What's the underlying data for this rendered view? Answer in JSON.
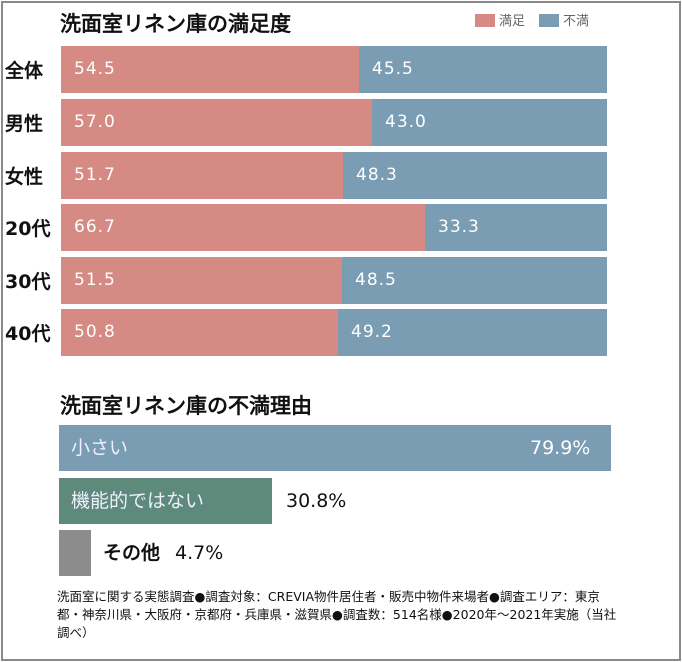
{
  "chart_data": [
    {
      "type": "bar",
      "stacked": true,
      "orientation": "horizontal",
      "title": "洗面室リネン庫の満足度",
      "categories": [
        "全体",
        "男性",
        "女性",
        "20代",
        "30代",
        "40代"
      ],
      "series": [
        {
          "name": "満足",
          "color": "#d58a83",
          "values": [
            54.5,
            57.0,
            51.7,
            66.7,
            51.5,
            50.8
          ]
        },
        {
          "name": "不満",
          "color": "#7a9db3",
          "values": [
            45.5,
            43.0,
            48.3,
            33.3,
            48.5,
            49.2
          ]
        }
      ],
      "legend": "top-right"
    },
    {
      "type": "bar",
      "orientation": "horizontal",
      "title": "洗面室リネン庫の不満理由",
      "categories": [
        "小さい",
        "機能的ではない",
        "その他"
      ],
      "values": [
        79.9,
        30.8,
        4.7
      ],
      "labels": [
        "79.9%",
        "30.8%",
        "4.7%"
      ],
      "colors": [
        "#7a9db3",
        "#5e8a7c",
        "#8c8c8c"
      ]
    }
  ],
  "footnote": "洗面室に関する実態調査●調査対象：CREVIA物件居住者・販売中物件来場者●調査エリア：東京都・神奈川県・大阪府・京都府・兵庫県・滋賀県●調査数：514名様●2020年～2021年実施（当社調べ）"
}
